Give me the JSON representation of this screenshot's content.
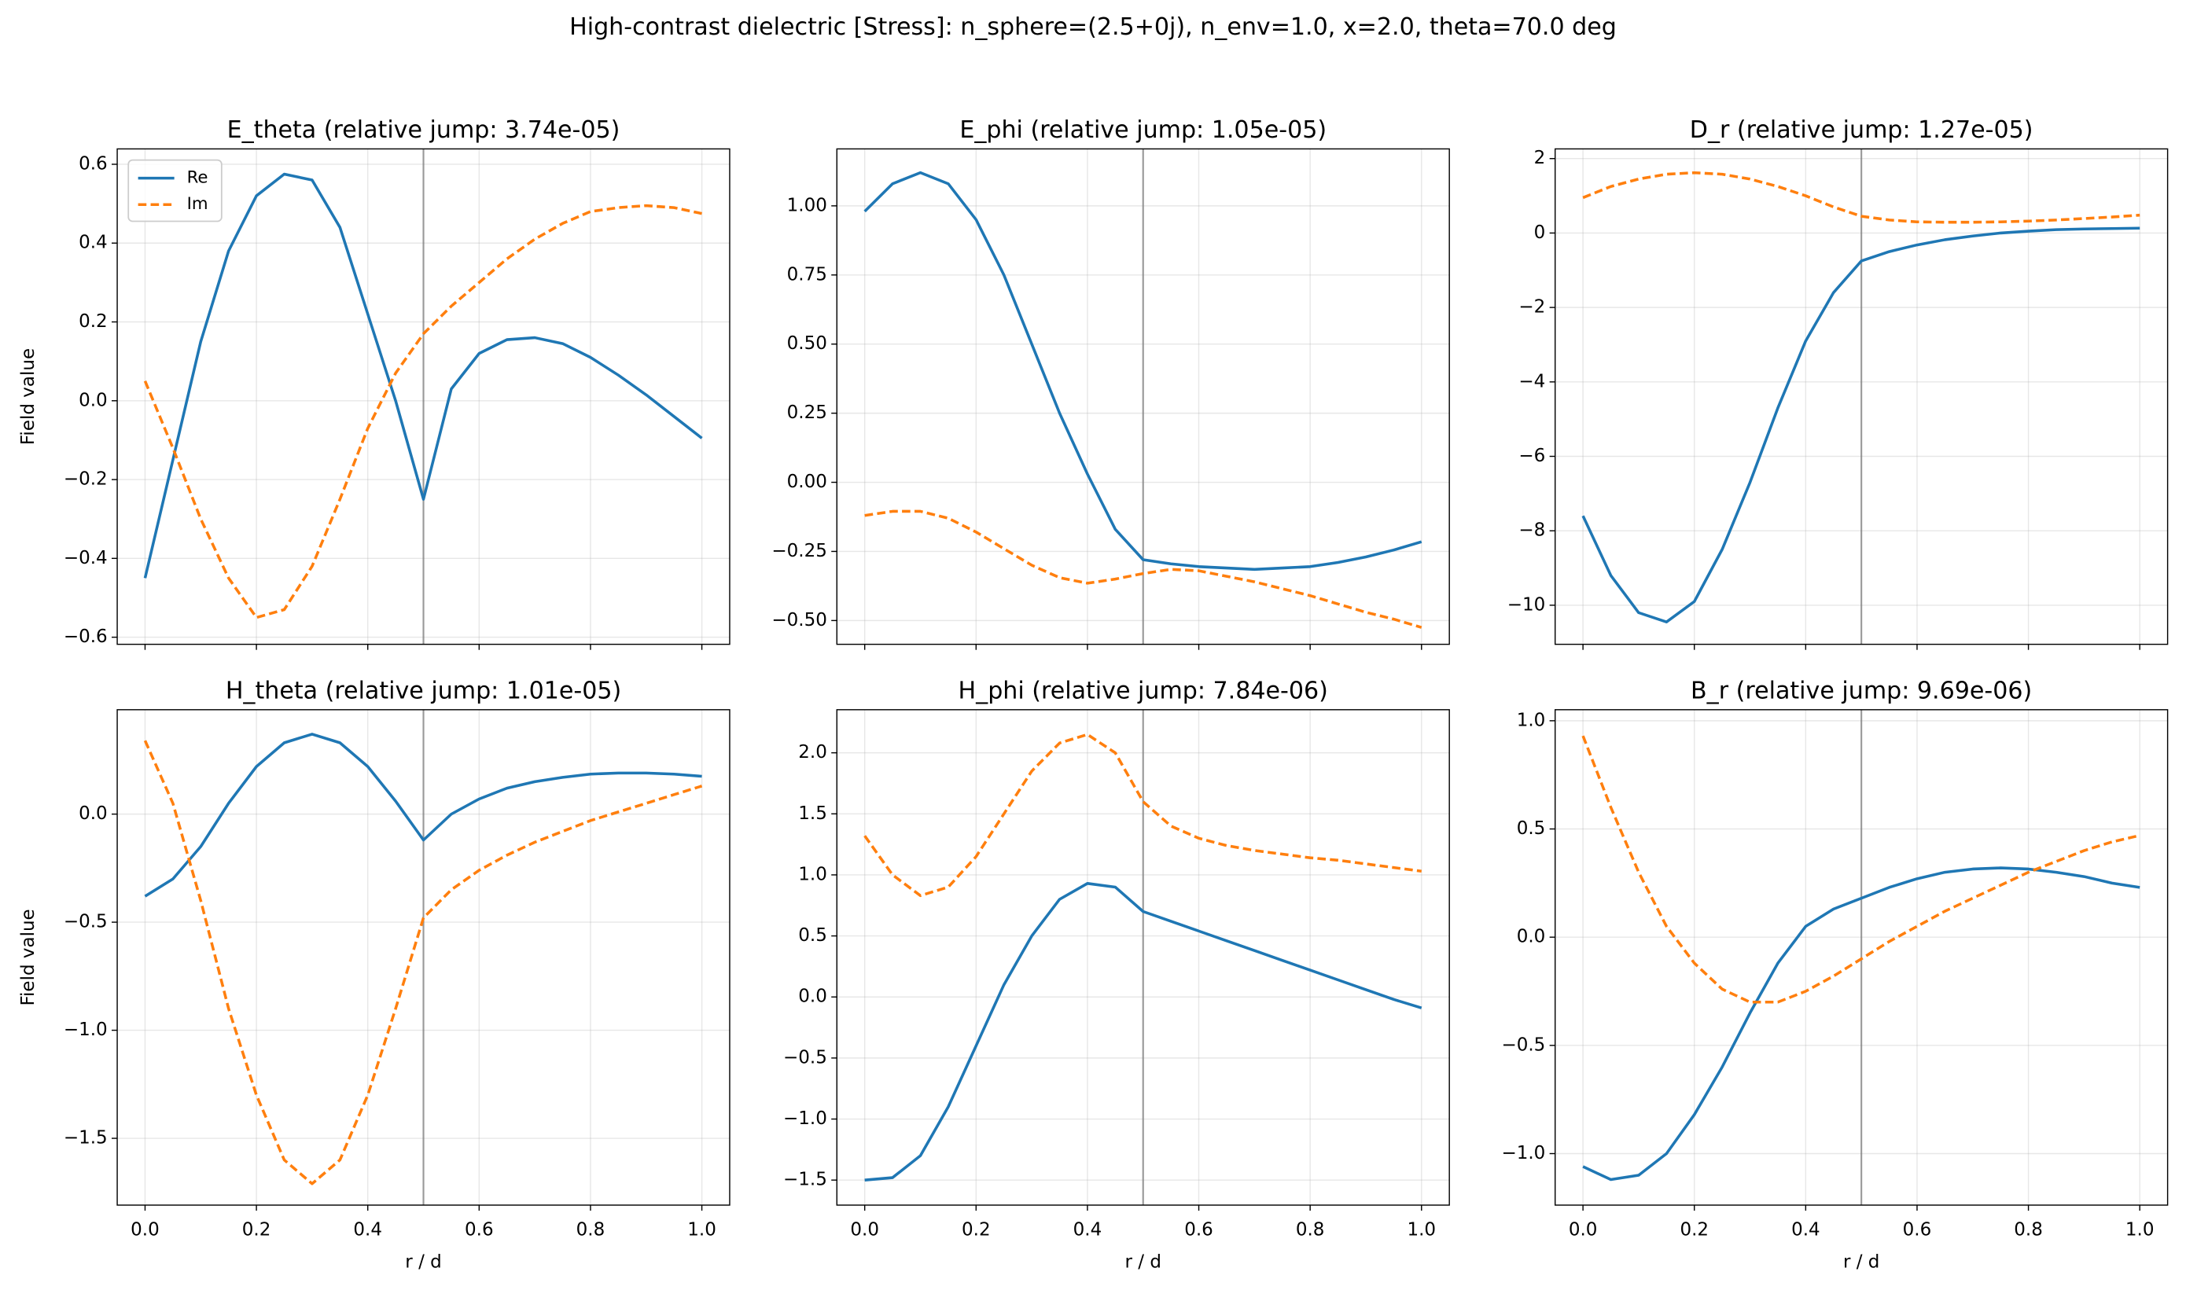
{
  "title": "High-contrast dielectric [Stress]: n_sphere=(2.5+0j), n_env=1.0, x=2.0, theta=70.0 deg",
  "chart_data": [
    {
      "type": "line",
      "title": "E_theta (relative jump: 3.74e-05)",
      "ylabel": "Field value",
      "legend": "upper left",
      "grid": true,
      "x": [
        0,
        0.05,
        0.1,
        0.15,
        0.2,
        0.25,
        0.3,
        0.35,
        0.4,
        0.45,
        0.5,
        0.55,
        0.6,
        0.65,
        0.7,
        0.75,
        0.8,
        0.85,
        0.9,
        0.95,
        1
      ],
      "series": [
        {
          "name": "Re",
          "color": "#1f77b4",
          "linestyle": "solid",
          "values": [
            -0.45,
            -0.15,
            0.15,
            0.38,
            0.52,
            0.575,
            0.56,
            0.44,
            0.22,
            0.0,
            -0.25,
            0.03,
            0.12,
            0.155,
            0.16,
            0.145,
            0.11,
            0.065,
            0.015,
            -0.04,
            -0.095
          ]
        },
        {
          "name": "Im",
          "color": "#ff7f0e",
          "linestyle": "dashed",
          "values": [
            0.05,
            -0.12,
            -0.3,
            -0.45,
            -0.55,
            -0.53,
            -0.42,
            -0.25,
            -0.07,
            0.07,
            0.17,
            0.24,
            0.3,
            0.36,
            0.41,
            0.45,
            0.48,
            0.49,
            0.495,
            0.49,
            0.475
          ]
        }
      ],
      "vline": 0.5,
      "xlim": [
        -0.05,
        1.05
      ],
      "ylim": [
        -0.618,
        0.639
      ],
      "xticks": [
        0,
        0.2,
        0.4,
        0.6,
        0.8,
        1
      ],
      "xtick_labels": false,
      "yticks": [
        {
          "value": -0.6,
          "label": "−0.6"
        },
        {
          "value": -0.4,
          "label": "−0.4"
        },
        {
          "value": -0.2,
          "label": "−0.2"
        },
        {
          "value": 0,
          "label": "0.0"
        },
        0.2,
        0.4,
        0.6
      ]
    },
    {
      "type": "line",
      "title": "E_phi (relative jump: 1.05e-05)",
      "grid": true,
      "x": [
        0,
        0.05,
        0.1,
        0.15,
        0.2,
        0.25,
        0.3,
        0.35,
        0.4,
        0.45,
        0.5,
        0.55,
        0.6,
        0.65,
        0.7,
        0.75,
        0.8,
        0.85,
        0.9,
        0.95,
        1
      ],
      "series": [
        {
          "name": "Re",
          "color": "#1f77b4",
          "linestyle": "solid",
          "values": [
            0.98,
            1.08,
            1.12,
            1.08,
            0.95,
            0.75,
            0.5,
            0.25,
            0.03,
            -0.17,
            -0.28,
            -0.295,
            -0.305,
            -0.31,
            -0.315,
            -0.31,
            -0.305,
            -0.29,
            -0.27,
            -0.245,
            -0.215
          ]
        },
        {
          "name": "Im",
          "color": "#ff7f0e",
          "linestyle": "dashed",
          "values": [
            -0.12,
            -0.105,
            -0.105,
            -0.13,
            -0.18,
            -0.24,
            -0.3,
            -0.345,
            -0.365,
            -0.35,
            -0.33,
            -0.315,
            -0.32,
            -0.34,
            -0.36,
            -0.385,
            -0.41,
            -0.44,
            -0.47,
            -0.495,
            -0.525
          ]
        }
      ],
      "vline": 0.5,
      "xlim": [
        -0.05,
        1.05
      ],
      "ylim": [
        -0.586,
        1.206
      ],
      "xticks": [
        0,
        0.2,
        0.4,
        0.6,
        0.8,
        1
      ],
      "xtick_labels": false,
      "yticks": [
        {
          "value": -0.5,
          "label": "−0.50"
        },
        {
          "value": -0.25,
          "label": "−0.25"
        },
        {
          "value": 0,
          "label": "0.00"
        },
        0.25,
        {
          "value": 0.5,
          "label": "0.50"
        },
        0.75,
        {
          "value": 1,
          "label": "1.00"
        }
      ]
    },
    {
      "type": "line",
      "title": "D_r (relative jump: 1.27e-05)",
      "grid": true,
      "x": [
        0,
        0.05,
        0.1,
        0.15,
        0.2,
        0.25,
        0.3,
        0.35,
        0.4,
        0.45,
        0.5,
        0.55,
        0.6,
        0.65,
        0.7,
        0.75,
        0.8,
        0.85,
        0.9,
        0.95,
        1
      ],
      "series": [
        {
          "name": "Re",
          "color": "#1f77b4",
          "linestyle": "solid",
          "values": [
            -7.6,
            -9.2,
            -10.2,
            -10.45,
            -9.9,
            -8.5,
            -6.7,
            -4.7,
            -2.9,
            -1.6,
            -0.75,
            -0.5,
            -0.32,
            -0.18,
            -0.08,
            0.0,
            0.05,
            0.09,
            0.11,
            0.12,
            0.13
          ]
        },
        {
          "name": "Im",
          "color": "#ff7f0e",
          "linestyle": "dashed",
          "values": [
            0.95,
            1.25,
            1.45,
            1.58,
            1.62,
            1.58,
            1.45,
            1.25,
            1.0,
            0.7,
            0.45,
            0.35,
            0.3,
            0.29,
            0.29,
            0.3,
            0.32,
            0.35,
            0.39,
            0.43,
            0.48
          ]
        }
      ],
      "vline": 0.5,
      "xlim": [
        -0.05,
        1.05
      ],
      "ylim": [
        -11.05,
        2.26
      ],
      "xticks": [
        0,
        0.2,
        0.4,
        0.6,
        0.8,
        1
      ],
      "xtick_labels": false,
      "yticks": [
        {
          "value": -10,
          "label": "−10"
        },
        {
          "value": -8,
          "label": "−8"
        },
        {
          "value": -6,
          "label": "−6"
        },
        {
          "value": -4,
          "label": "−4"
        },
        {
          "value": -2,
          "label": "−2"
        },
        0,
        2
      ]
    },
    {
      "type": "line",
      "title": "H_theta (relative jump: 1.01e-05)",
      "ylabel": "Field value",
      "xlabel": "r / d",
      "grid": true,
      "x": [
        0,
        0.05,
        0.1,
        0.15,
        0.2,
        0.25,
        0.3,
        0.35,
        0.4,
        0.45,
        0.5,
        0.55,
        0.6,
        0.65,
        0.7,
        0.75,
        0.8,
        0.85,
        0.9,
        0.95,
        1
      ],
      "series": [
        {
          "name": "Re",
          "color": "#1f77b4",
          "linestyle": "solid",
          "values": [
            -0.38,
            -0.3,
            -0.15,
            0.05,
            0.22,
            0.33,
            0.37,
            0.33,
            0.22,
            0.06,
            -0.12,
            0.0,
            0.07,
            0.12,
            0.15,
            0.17,
            0.185,
            0.19,
            0.19,
            0.185,
            0.175
          ]
        },
        {
          "name": "Im",
          "color": "#ff7f0e",
          "linestyle": "dashed",
          "values": [
            0.34,
            0.05,
            -0.4,
            -0.9,
            -1.3,
            -1.6,
            -1.71,
            -1.6,
            -1.3,
            -0.9,
            -0.48,
            -0.35,
            -0.26,
            -0.19,
            -0.13,
            -0.08,
            -0.03,
            0.01,
            0.05,
            0.09,
            0.13
          ]
        }
      ],
      "vline": 0.5,
      "xlim": [
        -0.05,
        1.05
      ],
      "ylim": [
        -1.809,
        0.483
      ],
      "xticks": [
        {
          "value": 0,
          "label": "0.0"
        },
        0.2,
        0.4,
        0.6,
        0.8,
        {
          "value": 1,
          "label": "1.0"
        }
      ],
      "yticks": [
        {
          "value": -1.5,
          "label": "−1.5"
        },
        {
          "value": -1,
          "label": "−1.0"
        },
        {
          "value": -0.5,
          "label": "−0.5"
        },
        {
          "value": 0,
          "label": "0.0"
        }
      ]
    },
    {
      "type": "line",
      "title": "H_phi (relative jump: 7.84e-06)",
      "xlabel": "r / d",
      "grid": true,
      "x": [
        0,
        0.05,
        0.1,
        0.15,
        0.2,
        0.25,
        0.3,
        0.35,
        0.4,
        0.45,
        0.5,
        0.55,
        0.6,
        0.65,
        0.7,
        0.75,
        0.8,
        0.85,
        0.9,
        0.95,
        1
      ],
      "series": [
        {
          "name": "Re",
          "color": "#1f77b4",
          "linestyle": "solid",
          "values": [
            -1.5,
            -1.48,
            -1.3,
            -0.9,
            -0.4,
            0.1,
            0.5,
            0.8,
            0.93,
            0.9,
            0.7,
            0.62,
            0.54,
            0.46,
            0.38,
            0.3,
            0.22,
            0.14,
            0.06,
            -0.02,
            -0.09
          ]
        },
        {
          "name": "Im",
          "color": "#ff7f0e",
          "linestyle": "dashed",
          "values": [
            1.32,
            1.0,
            0.83,
            0.9,
            1.15,
            1.5,
            1.85,
            2.08,
            2.15,
            2.0,
            1.6,
            1.4,
            1.3,
            1.24,
            1.2,
            1.17,
            1.14,
            1.12,
            1.09,
            1.06,
            1.03
          ]
        }
      ],
      "vline": 0.5,
      "xlim": [
        -0.05,
        1.05
      ],
      "ylim": [
        -1.705,
        2.353
      ],
      "xticks": [
        {
          "value": 0,
          "label": "0.0"
        },
        0.2,
        0.4,
        0.6,
        0.8,
        {
          "value": 1,
          "label": "1.0"
        }
      ],
      "yticks": [
        {
          "value": -1.5,
          "label": "−1.5"
        },
        {
          "value": -1,
          "label": "−1.0"
        },
        {
          "value": -0.5,
          "label": "−0.5"
        },
        {
          "value": 0,
          "label": "0.0"
        },
        0.5,
        {
          "value": 1,
          "label": "1.0"
        },
        1.5,
        {
          "value": 2,
          "label": "2.0"
        }
      ]
    },
    {
      "type": "line",
      "title": "B_r (relative jump: 9.69e-06)",
      "xlabel": "r / d",
      "grid": true,
      "x": [
        0,
        0.05,
        0.1,
        0.15,
        0.2,
        0.25,
        0.3,
        0.35,
        0.4,
        0.45,
        0.5,
        0.55,
        0.6,
        0.65,
        0.7,
        0.75,
        0.8,
        0.85,
        0.9,
        0.95,
        1
      ],
      "series": [
        {
          "name": "Re",
          "color": "#1f77b4",
          "linestyle": "solid",
          "values": [
            -1.06,
            -1.12,
            -1.1,
            -1.0,
            -0.82,
            -0.6,
            -0.35,
            -0.12,
            0.05,
            0.13,
            0.18,
            0.23,
            0.27,
            0.3,
            0.315,
            0.32,
            0.315,
            0.3,
            0.28,
            0.25,
            0.23
          ]
        },
        {
          "name": "Im",
          "color": "#ff7f0e",
          "linestyle": "dashed",
          "values": [
            0.93,
            0.6,
            0.3,
            0.05,
            -0.12,
            -0.24,
            -0.3,
            -0.3,
            -0.25,
            -0.18,
            -0.1,
            -0.02,
            0.05,
            0.12,
            0.18,
            0.24,
            0.3,
            0.35,
            0.4,
            0.44,
            0.47
          ]
        }
      ],
      "vline": 0.5,
      "xlim": [
        -0.05,
        1.05
      ],
      "ylim": [
        -1.238,
        1.051
      ],
      "xticks": [
        {
          "value": 0,
          "label": "0.0"
        },
        0.2,
        0.4,
        0.6,
        0.8,
        {
          "value": 1,
          "label": "1.0"
        }
      ],
      "yticks": [
        {
          "value": -1,
          "label": "−1.0"
        },
        {
          "value": -0.5,
          "label": "−0.5"
        },
        {
          "value": 0,
          "label": "0.0"
        },
        0.5,
        {
          "value": 1,
          "label": "1.0"
        }
      ]
    }
  ]
}
